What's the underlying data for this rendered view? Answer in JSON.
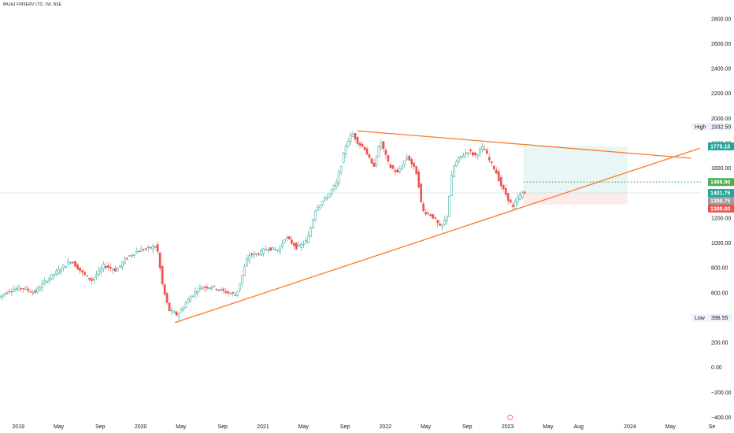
{
  "title": "BAJAJ FINSERV LTD, 1W, NSE",
  "chart_data": {
    "type": "candlestick",
    "ylim": [
      -400,
      2900
    ],
    "y_ticks": [
      "2800.00",
      "2600.00",
      "2400.00",
      "2200.00",
      "2000.00",
      "1800.00",
      "1600.00",
      "1400.00",
      "1200.00",
      "1000.00",
      "800.00",
      "600.00",
      "400.00",
      "200.00",
      "0.00",
      "−200.00",
      "−400.00"
    ],
    "y_tick_values": [
      2800,
      2600,
      2400,
      2200,
      2000,
      1800,
      1600,
      1400,
      1200,
      1000,
      800,
      600,
      400,
      200,
      0,
      -200,
      -400
    ],
    "x_ticks": [
      "2019",
      "May",
      "Sep",
      "2020",
      "May",
      "Sep",
      "2021",
      "May",
      "Sep",
      "2022",
      "May",
      "Sep",
      "2023",
      "May",
      "Aug",
      "2024",
      "May",
      "Se"
    ],
    "x_tick_values": [
      2019.0,
      2019.33,
      2019.67,
      2020.0,
      2020.33,
      2020.67,
      2021.0,
      2021.33,
      2021.67,
      2022.0,
      2022.33,
      2022.67,
      2023.0,
      2023.33,
      2023.58,
      2024.0,
      2024.33,
      2024.67
    ],
    "x_range": [
      2018.85,
      2024.85
    ],
    "colors": {
      "up": "#26a69a",
      "down": "#ef5350",
      "trendline": "#f57c2b",
      "target": "#2e9e5b"
    },
    "price_path": [
      [
        2018.85,
        560
      ],
      [
        2018.95,
        620
      ],
      [
        2019.05,
        640
      ],
      [
        2019.15,
        600
      ],
      [
        2019.25,
        700
      ],
      [
        2019.35,
        780
      ],
      [
        2019.45,
        860
      ],
      [
        2019.55,
        750
      ],
      [
        2019.62,
        700
      ],
      [
        2019.72,
        820
      ],
      [
        2019.82,
        780
      ],
      [
        2019.9,
        880
      ],
      [
        2020.0,
        940
      ],
      [
        2020.1,
        960
      ],
      [
        2020.15,
        980
      ],
      [
        2020.2,
        640
      ],
      [
        2020.25,
        460
      ],
      [
        2020.32,
        420
      ],
      [
        2020.42,
        560
      ],
      [
        2020.5,
        640
      ],
      [
        2020.6,
        650
      ],
      [
        2020.7,
        610
      ],
      [
        2020.8,
        580
      ],
      [
        2020.9,
        900
      ],
      [
        2021.0,
        920
      ],
      [
        2021.05,
        960
      ],
      [
        2021.15,
        940
      ],
      [
        2021.2,
        1050
      ],
      [
        2021.3,
        960
      ],
      [
        2021.38,
        1020
      ],
      [
        2021.45,
        1280
      ],
      [
        2021.55,
        1380
      ],
      [
        2021.62,
        1480
      ],
      [
        2021.7,
        1800
      ],
      [
        2021.75,
        1880
      ],
      [
        2021.8,
        1800
      ],
      [
        2021.85,
        1760
      ],
      [
        2021.92,
        1600
      ],
      [
        2021.98,
        1820
      ],
      [
        2022.05,
        1620
      ],
      [
        2022.12,
        1560
      ],
      [
        2022.2,
        1700
      ],
      [
        2022.28,
        1550
      ],
      [
        2022.32,
        1260
      ],
      [
        2022.4,
        1220
      ],
      [
        2022.47,
        1120
      ],
      [
        2022.52,
        1200
      ],
      [
        2022.57,
        1600
      ],
      [
        2022.62,
        1680
      ],
      [
        2022.7,
        1740
      ],
      [
        2022.75,
        1700
      ],
      [
        2022.82,
        1770
      ],
      [
        2022.87,
        1660
      ],
      [
        2022.92,
        1580
      ],
      [
        2022.97,
        1450
      ],
      [
        2023.02,
        1360
      ],
      [
        2023.06,
        1280
      ],
      [
        2023.1,
        1360
      ],
      [
        2023.14,
        1400
      ]
    ],
    "trendlines": [
      {
        "x1": 2020.28,
        "y1": 360,
        "x2": 2024.57,
        "y2": 1760
      },
      {
        "x1": 2021.77,
        "y1": 1900,
        "x2": 2024.5,
        "y2": 1680
      }
    ],
    "target_zone": {
      "x1": 2023.13,
      "x2": 2023.98,
      "entry": 1401.75,
      "target": 1775.15,
      "stop": 1308.6
    },
    "horizontal_lines": [
      {
        "value": 1488.9,
        "style": "dotted",
        "color": "#2e9e5b"
      },
      {
        "value": 1401.75,
        "style": "solid",
        "color": "#cfe3e0"
      }
    ],
    "price_labels": [
      {
        "text": "1775.15",
        "value": 1775.15,
        "bg": "#26a69a"
      },
      {
        "text": "1488.90",
        "value": 1488.9,
        "bg": "#4caf50"
      },
      {
        "text": "1401.75",
        "value": 1401.75,
        "bg": "#26a69a"
      },
      {
        "text": "1398.75",
        "value": 1398.75,
        "bg": "#9e9e9e"
      },
      {
        "text": "1308.60",
        "value": 1308.6,
        "bg": "#ef5350"
      }
    ],
    "high": {
      "label": "High",
      "value": "1932.50"
    },
    "low": {
      "label": "Low",
      "value": "398.55"
    }
  }
}
